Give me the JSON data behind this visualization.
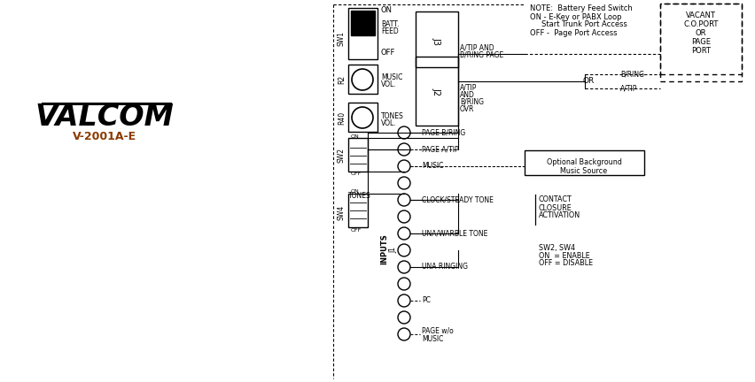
{
  "bg": "#ffffff",
  "note": [
    "NOTE:  Battery Feed Switch",
    "ON - E-Key or PABX Loop",
    "     Start Trunk Port Access",
    "OFF -  Page Port Access"
  ],
  "model": "V-2001A-E",
  "vacant_box": [
    "VACANT",
    "C.O.PORT",
    "OR",
    "PAGE",
    "PORT"
  ],
  "contact_closure": [
    "CONTACT",
    "CLOSURE",
    "ACTIVATION"
  ],
  "sw24_note": [
    "SW2, SW4",
    "ON  = ENABLE",
    "OFF = DISABLE"
  ],
  "optional_bg": [
    "Optional Background",
    "Music Source"
  ],
  "j3_out": [
    "A/TIP AND",
    "B/RING PAGE"
  ],
  "j2_out": [
    "A/TIP",
    "AND",
    "B/RING",
    "OVR"
  ]
}
